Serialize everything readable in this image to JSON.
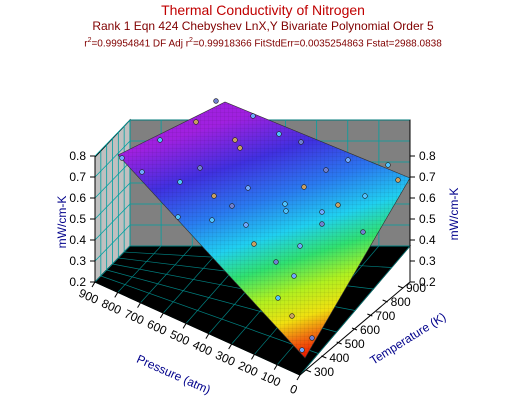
{
  "chart_data": {
    "type": "surface3d",
    "title": "Thermal Conductivity of Nitrogen",
    "subtitle": "Rank 1  Eqn 424  Chebyshev LnX,Y Bivariate Polynomial Order 5",
    "stats": {
      "r2_label": "r",
      "r2_value": "=0.99954841  DF Adj r",
      "adj_value": "=0.99918366  FitStdErr=0.0035254863  Fstat=2988.0838",
      "sup": "2"
    },
    "x_axis": {
      "label": "Pressure (atm)",
      "ticks": [
        900,
        800,
        700,
        600,
        500,
        400,
        300,
        200,
        100,
        0
      ],
      "range": [
        0,
        900
      ]
    },
    "y_axis": {
      "label": "Temperature (K)",
      "ticks": [
        300,
        400,
        500,
        600,
        700,
        800,
        900
      ],
      "range": [
        300,
        900
      ]
    },
    "z_axis": {
      "label": "mW/cm-K",
      "ticks": [
        "0.2",
        "0.3",
        "0.4",
        "0.5",
        "0.6",
        "0.7",
        "0.8"
      ],
      "range": [
        0.2,
        0.8
      ]
    },
    "surface": {
      "corners": [
        {
          "pressure": 900,
          "temperature": 300,
          "z": 0.8
        },
        {
          "pressure": 0,
          "temperature": 300,
          "z": 0.2
        },
        {
          "pressure": 0,
          "temperature": 900,
          "z": 0.6
        },
        {
          "pressure": 900,
          "temperature": 900,
          "z": 0.8
        }
      ]
    }
  }
}
